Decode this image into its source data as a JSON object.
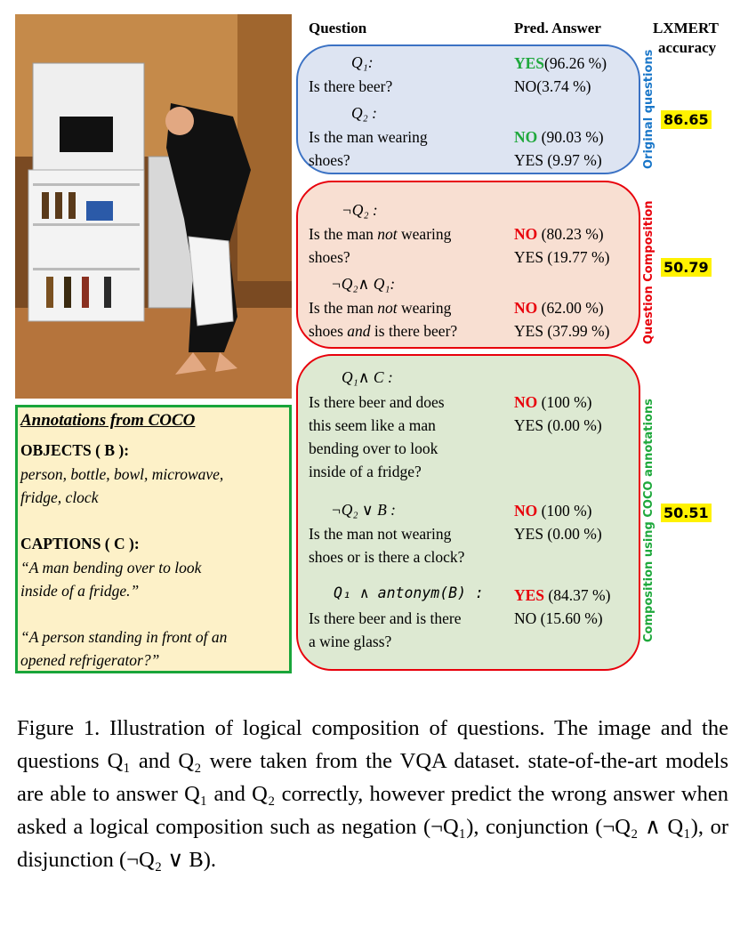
{
  "headers": {
    "question": "Question",
    "pred_answer": "Pred. Answer",
    "lxmert": "LXMERT",
    "accuracy": "accuracy"
  },
  "panels": {
    "original": {
      "label": "Original questions",
      "accuracy": "86.65",
      "color": "#3b72c4",
      "fill": "#dde4f2",
      "q1_sym": "Q₁:",
      "q1_text": "Is there beer?",
      "q1_ans1_word": "YES",
      "q1_ans1_pct": "(96.26 %)",
      "q1_ans2": "NO(3.74 %)",
      "q2_sym": "Q₂ :",
      "q2_text_1": "Is the man wearing",
      "q2_text_2": "shoes?",
      "q2_ans1_word": "NO",
      "q2_ans1_pct": " (90.03 %)",
      "q2_ans2": "YES (9.97 %)"
    },
    "composition": {
      "label": "Question Composition",
      "accuracy": "50.79",
      "color": "#e8000b",
      "fill": "#f8dfd2",
      "a_sym": "¬Q₂ :",
      "a_text_1a": "Is the man ",
      "a_text_1b": "not",
      "a_text_1c": " wearing",
      "a_text_2": "shoes?",
      "a_ans1_word": "NO",
      "a_ans1_pct": " (80.23 %)",
      "a_ans2": "YES (19.77 %)",
      "b_sym": "¬Q₂∧ Q₁:",
      "b_text_1a": "Is the man ",
      "b_text_1b": "not",
      "b_text_1c": " wearing",
      "b_text_2a": "shoes ",
      "b_text_2b": "and",
      "b_text_2c": " is there beer?",
      "b_ans1_word": "NO",
      "b_ans1_pct": " (62.00 %)",
      "b_ans2": "YES (37.99 %)"
    },
    "coco": {
      "label": "Composition using COCO annotations",
      "accuracy": "50.51",
      "color": "#e8000b",
      "fill": "#dde9d2",
      "a_sym": "Q₁∧ C :",
      "a_text": [
        "Is there beer and does",
        "this seem like a man",
        "bending over to look",
        "inside of a fridge?"
      ],
      "a_ans1_word": "NO",
      "a_ans1_pct": " (100 %)",
      "a_ans2": "YES (0.00 %)",
      "b_sym": "¬Q₂ ∨ B :",
      "b_text": [
        "Is the man not wearing",
        "shoes or is there a clock?"
      ],
      "b_ans1_word": "NO",
      "b_ans1_pct": " (100 %)",
      "b_ans2": "YES (0.00 %)",
      "c_sym": "Q₁ ∧ antonym(B) :",
      "c_text": [
        "Is there beer and is there",
        "a wine glass?"
      ],
      "c_ans1_word": "YES",
      "c_ans1_pct": " (84.37 %)",
      "c_ans2": "NO (15.60 %)"
    }
  },
  "annotations": {
    "title": "Annotations from COCO",
    "objects_label": "OBJECTS ( B ):",
    "objects_1": "person, bottle, bowl, microwave,",
    "objects_2": "fridge, clock",
    "captions_label": "CAPTIONS ( C ):",
    "caption1_1": "“A man bending over to look",
    "caption1_2": "inside of a fridge.”",
    "caption2_1": "“A person standing in front of an",
    "caption2_2": "opened refrigerator?”"
  },
  "figure_caption": "Figure 1. Illustration of logical composition of questions. The image and the questions Q₁ and Q₂ were taken from the VQA dataset. state-of-the-art models are able to answer Q₁ and Q₂ correctly, however predict the wrong answer when asked a logical composition such as negation (¬Q₁), conjunction (¬Q₂ ∧ Q₁), or disjunction (¬Q₂ ∨ B)."
}
